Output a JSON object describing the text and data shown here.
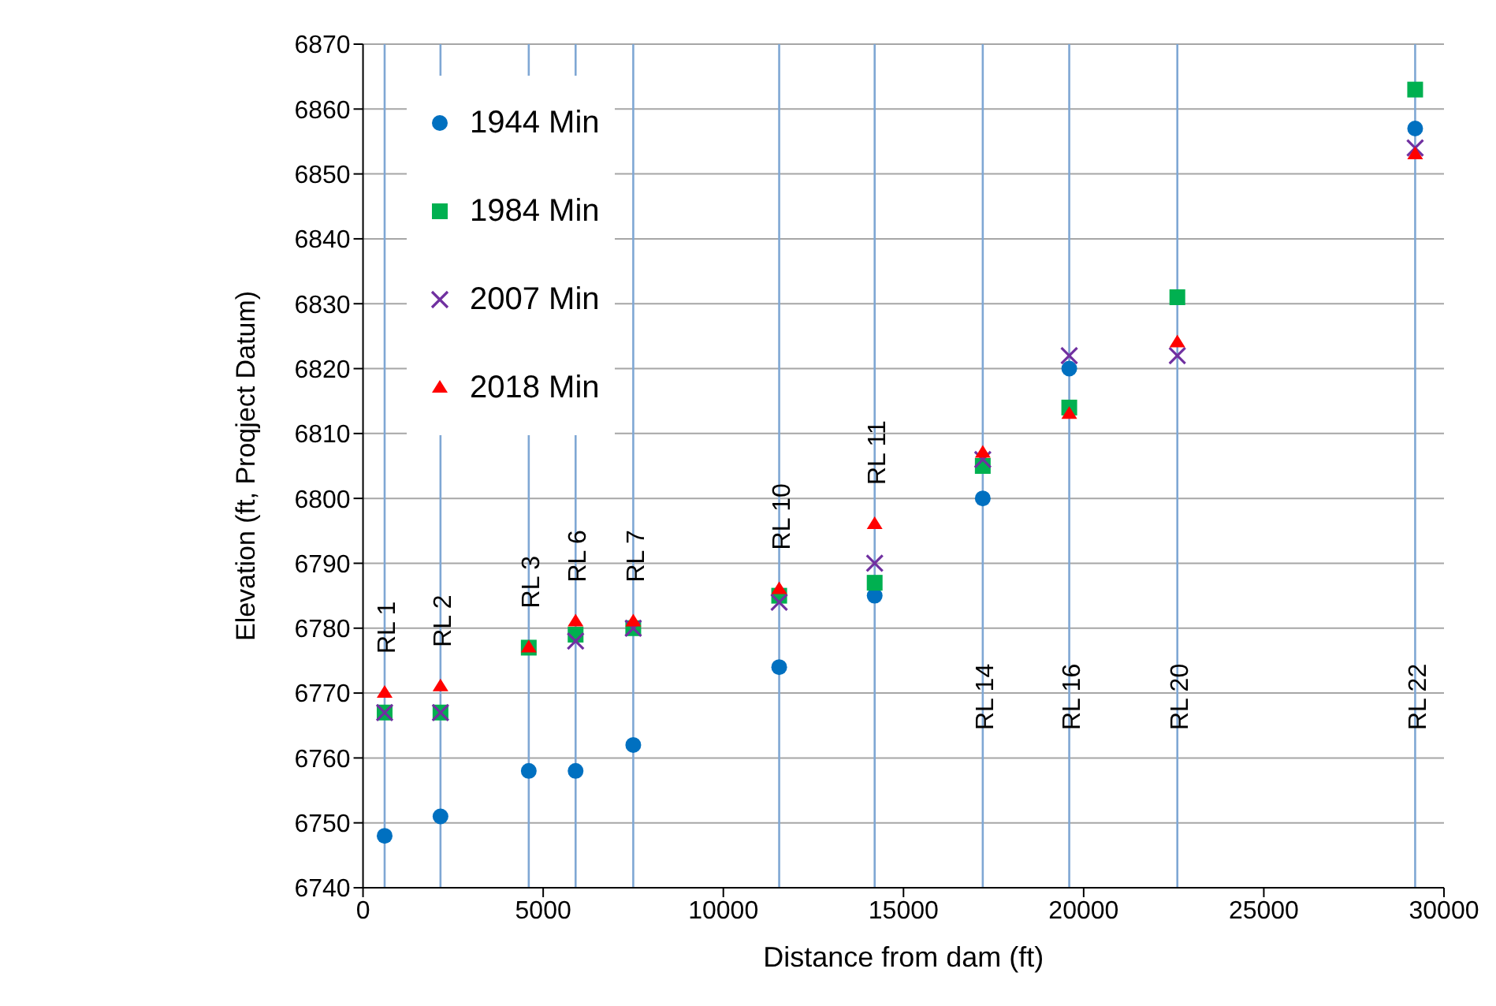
{
  "chart_data": {
    "type": "scatter",
    "xlabel": "Distance from dam (ft)",
    "ylabel": "Elevation (ft, Proqject Datum)",
    "x": [
      600,
      2150,
      4600,
      5900,
      7500,
      11550,
      14200,
      17200,
      19600,
      22600,
      29200
    ],
    "series": [
      {
        "name": "1944 Min",
        "color": "#0070c0",
        "marker": "circle",
        "values": [
          6748,
          6751,
          6758,
          6758,
          6762,
          6774,
          6785,
          6800,
          6820,
          null,
          6857
        ]
      },
      {
        "name": "1984 Min",
        "color": "#00b050",
        "marker": "square",
        "values": [
          6767,
          6767,
          6777,
          6779,
          6780,
          6785,
          6787,
          6805,
          6814,
          6831,
          6863
        ]
      },
      {
        "name": "2007 Min",
        "color": "#7030a0",
        "marker": "cross",
        "values": [
          6767,
          6767,
          null,
          6778,
          6780,
          6784,
          6790,
          6806,
          6822,
          6822,
          6854
        ]
      },
      {
        "name": "2018 Min",
        "color": "#ff0000",
        "marker": "triangle",
        "values": [
          6770,
          6771,
          6777,
          6781,
          6781,
          6786,
          6796,
          6807,
          6813,
          6824,
          6853
        ]
      }
    ],
    "xlim": [
      0,
      30000
    ],
    "xticks": [
      0,
      5000,
      10000,
      15000,
      20000,
      25000,
      30000
    ],
    "ylim": [
      6740,
      6870
    ],
    "yticks": [
      6740,
      6750,
      6760,
      6770,
      6780,
      6790,
      6800,
      6810,
      6820,
      6830,
      6840,
      6850,
      6860,
      6870
    ],
    "grid": "y",
    "legend": "top left",
    "ref_lines": [
      {
        "axis": "x",
        "value": 600,
        "label": "RL 1",
        "color": "#7fa7d4"
      },
      {
        "axis": "x",
        "value": 2150,
        "label": "RL 2",
        "color": "#7fa7d4"
      },
      {
        "axis": "x",
        "value": 4600,
        "label": "RL 3",
        "color": "#7fa7d4"
      },
      {
        "axis": "x",
        "value": 5900,
        "label": "RL 6",
        "color": "#7fa7d4"
      },
      {
        "axis": "x",
        "value": 7500,
        "label": "RL 7",
        "color": "#7fa7d4"
      },
      {
        "axis": "x",
        "value": 11550,
        "label": "RL 10",
        "color": "#7fa7d4"
      },
      {
        "axis": "x",
        "value": 14200,
        "label": "RL 11",
        "color": "#7fa7d4"
      },
      {
        "axis": "x",
        "value": 17200,
        "label": "RL 14",
        "color": "#7fa7d4"
      },
      {
        "axis": "x",
        "value": 19600,
        "label": "RL 16",
        "color": "#7fa7d4"
      },
      {
        "axis": "x",
        "value": 22600,
        "label": "RL 20",
        "color": "#7fa7d4"
      },
      {
        "axis": "x",
        "value": 29200,
        "label": "RL 22",
        "color": "#7fa7d4"
      }
    ]
  }
}
